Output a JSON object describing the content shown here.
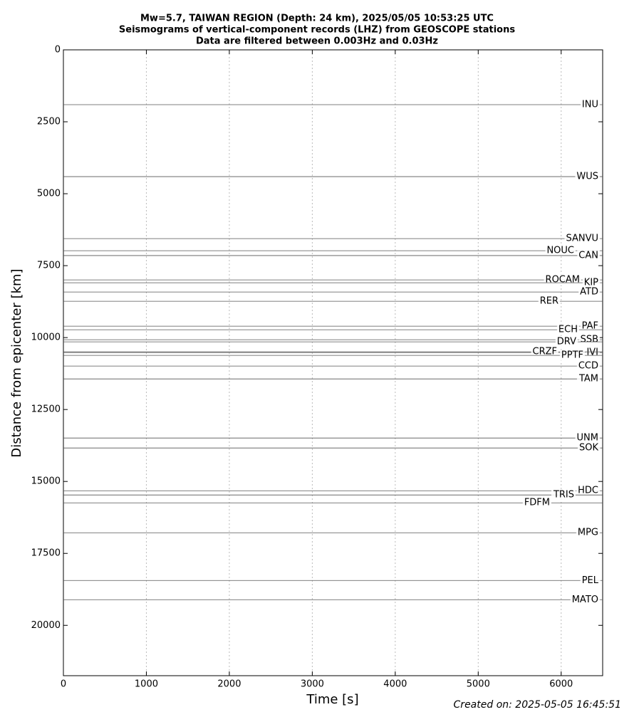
{
  "chart_data": {
    "type": "seismogram",
    "title": [
      "Mw=5.7, TAIWAN REGION (Depth: 24 km), 2025/05/05 10:53:25 UTC",
      "Seismograms of vertical-component records (LHZ) from GEOSCOPE stations",
      "Data are filtered between 0.003Hz and 0.03Hz"
    ],
    "x_label": "Time [s]",
    "y_label": "Distance from epicenter [km]",
    "xlim": [
      0,
      6500
    ],
    "xticks": [
      0,
      1000,
      2000,
      3000,
      4000,
      5000,
      6000
    ],
    "ylim": [
      21750,
      0
    ],
    "yticks": [
      0,
      2500,
      5000,
      7500,
      10000,
      12500,
      15000,
      17500,
      20000
    ],
    "grid": true,
    "color": "#555555",
    "stations": [
      "INU",
      "WUS",
      "SANVU",
      "NOUC",
      "CAN",
      "ROCAM",
      "KIP",
      "ATD",
      "RER",
      "PAF",
      "ECH",
      "SSB",
      "DRV",
      "IVI",
      "CRZF",
      "PPTF",
      "CCD",
      "TAM",
      "UNM",
      "SOK",
      "HDC",
      "TRIS",
      "FDFM",
      "MPG",
      "PEL",
      "MATO"
    ],
    "distances": [
      1906,
      4406,
      6560,
      6980,
      7150,
      7995,
      8094,
      8416,
      8738,
      9604,
      9728,
      10074,
      10149,
      10520,
      10495,
      10619,
      10990,
      11436,
      13490,
      13837,
      15322,
      15470,
      15743,
      16782,
      18441,
      19109
    ],
    "logo": "geoscope",
    "footer": "Created on: 2025-05-05 16:45:51"
  }
}
